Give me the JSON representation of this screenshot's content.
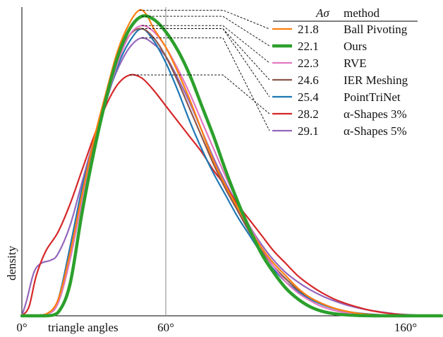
{
  "chart_data": {
    "type": "line",
    "xlabel": "triangle angles",
    "ylabel": "density",
    "xlim": [
      0,
      175
    ],
    "ylim": [
      0,
      1.0
    ],
    "x_ticks": [
      {
        "value": 0,
        "label": "0°"
      },
      {
        "value": 60,
        "label": "60°"
      },
      {
        "value": 160,
        "label": "160°"
      }
    ],
    "reference_line_x": 60,
    "grid": false,
    "legend": {
      "placement": "top-right",
      "header_metric": "Aσ",
      "header_method": "method"
    },
    "series": [
      {
        "name": "Ball Pivoting",
        "metric": "21.8",
        "color": "#ff7f0e",
        "width": 2.2,
        "points": [
          [
            0,
            0
          ],
          [
            5,
            0
          ],
          [
            10,
            0.005
          ],
          [
            15,
            0.05
          ],
          [
            20,
            0.2
          ],
          [
            25,
            0.39
          ],
          [
            30,
            0.57
          ],
          [
            35,
            0.72
          ],
          [
            40,
            0.86
          ],
          [
            45,
            0.95
          ],
          [
            49,
            0.99
          ],
          [
            52,
            0.975
          ],
          [
            55,
            0.93
          ],
          [
            60,
            0.87
          ],
          [
            65,
            0.79
          ],
          [
            70,
            0.7
          ],
          [
            75,
            0.6
          ],
          [
            80,
            0.5
          ],
          [
            85,
            0.42
          ],
          [
            90,
            0.35
          ],
          [
            95,
            0.28
          ],
          [
            100,
            0.22
          ],
          [
            105,
            0.17
          ],
          [
            110,
            0.13
          ],
          [
            115,
            0.09
          ],
          [
            120,
            0.06
          ],
          [
            125,
            0.04
          ],
          [
            130,
            0.025
          ],
          [
            135,
            0.015
          ],
          [
            140,
            0.008
          ],
          [
            145,
            0.004
          ],
          [
            150,
            0.002
          ],
          [
            160,
            0
          ],
          [
            175,
            0
          ]
        ]
      },
      {
        "name": "Ours",
        "metric": "22.1",
        "color": "#2ca02c",
        "width": 4.5,
        "points": [
          [
            0,
            0
          ],
          [
            10,
            0
          ],
          [
            15,
            0.01
          ],
          [
            20,
            0.1
          ],
          [
            25,
            0.33
          ],
          [
            30,
            0.53
          ],
          [
            35,
            0.7
          ],
          [
            40,
            0.84
          ],
          [
            45,
            0.93
          ],
          [
            50,
            0.97
          ],
          [
            55,
            0.96
          ],
          [
            60,
            0.92
          ],
          [
            65,
            0.86
          ],
          [
            70,
            0.78
          ],
          [
            75,
            0.68
          ],
          [
            80,
            0.58
          ],
          [
            85,
            0.47
          ],
          [
            90,
            0.37
          ],
          [
            95,
            0.28
          ],
          [
            100,
            0.2
          ],
          [
            105,
            0.14
          ],
          [
            110,
            0.09
          ],
          [
            115,
            0.055
          ],
          [
            120,
            0.03
          ],
          [
            125,
            0.015
          ],
          [
            130,
            0.007
          ],
          [
            135,
            0.003
          ],
          [
            140,
            0.001
          ],
          [
            150,
            0
          ],
          [
            175,
            0
          ]
        ]
      },
      {
        "name": "RVE",
        "metric": "22.3",
        "color": "#e377c2",
        "width": 2.2,
        "points": [
          [
            0,
            0
          ],
          [
            10,
            0.005
          ],
          [
            15,
            0.04
          ],
          [
            20,
            0.18
          ],
          [
            25,
            0.37
          ],
          [
            30,
            0.54
          ],
          [
            35,
            0.69
          ],
          [
            40,
            0.82
          ],
          [
            45,
            0.91
          ],
          [
            50,
            0.94
          ],
          [
            55,
            0.92
          ],
          [
            60,
            0.87
          ],
          [
            65,
            0.8
          ],
          [
            70,
            0.72
          ],
          [
            75,
            0.63
          ],
          [
            80,
            0.54
          ],
          [
            85,
            0.45
          ],
          [
            90,
            0.37
          ],
          [
            95,
            0.29
          ],
          [
            100,
            0.22
          ],
          [
            105,
            0.16
          ],
          [
            110,
            0.11
          ],
          [
            115,
            0.075
          ],
          [
            120,
            0.05
          ],
          [
            125,
            0.03
          ],
          [
            130,
            0.018
          ],
          [
            135,
            0.01
          ],
          [
            140,
            0.005
          ],
          [
            150,
            0.001
          ],
          [
            160,
            0
          ],
          [
            175,
            0
          ]
        ]
      },
      {
        "name": "IER Meshing",
        "metric": "24.6",
        "color": "#8c564b",
        "width": 2.2,
        "points": [
          [
            0,
            0
          ],
          [
            10,
            0.005
          ],
          [
            15,
            0.04
          ],
          [
            20,
            0.18
          ],
          [
            25,
            0.37
          ],
          [
            30,
            0.55
          ],
          [
            35,
            0.7
          ],
          [
            40,
            0.83
          ],
          [
            45,
            0.91
          ],
          [
            50,
            0.93
          ],
          [
            55,
            0.9
          ],
          [
            60,
            0.84
          ],
          [
            65,
            0.76
          ],
          [
            70,
            0.67
          ],
          [
            75,
            0.58
          ],
          [
            80,
            0.49
          ],
          [
            85,
            0.41
          ],
          [
            90,
            0.34
          ],
          [
            95,
            0.27
          ],
          [
            100,
            0.21
          ],
          [
            105,
            0.16
          ],
          [
            110,
            0.12
          ],
          [
            115,
            0.085
          ],
          [
            120,
            0.06
          ],
          [
            125,
            0.04
          ],
          [
            130,
            0.025
          ],
          [
            135,
            0.015
          ],
          [
            140,
            0.008
          ],
          [
            150,
            0.002
          ],
          [
            160,
            0
          ],
          [
            175,
            0
          ]
        ]
      },
      {
        "name": "PointTriNet",
        "metric": "25.4",
        "color": "#1f77b4",
        "width": 2.2,
        "points": [
          [
            0,
            0
          ],
          [
            10,
            0.005
          ],
          [
            15,
            0.05
          ],
          [
            20,
            0.22
          ],
          [
            25,
            0.41
          ],
          [
            30,
            0.56
          ],
          [
            35,
            0.69
          ],
          [
            40,
            0.81
          ],
          [
            45,
            0.89
          ],
          [
            50,
            0.93
          ],
          [
            55,
            0.89
          ],
          [
            60,
            0.82
          ],
          [
            65,
            0.73
          ],
          [
            70,
            0.63
          ],
          [
            75,
            0.54
          ],
          [
            80,
            0.46
          ],
          [
            85,
            0.39
          ],
          [
            90,
            0.32
          ],
          [
            95,
            0.26
          ],
          [
            100,
            0.2
          ],
          [
            105,
            0.15
          ],
          [
            110,
            0.11
          ],
          [
            115,
            0.08
          ],
          [
            120,
            0.055
          ],
          [
            125,
            0.037
          ],
          [
            130,
            0.024
          ],
          [
            135,
            0.015
          ],
          [
            140,
            0.009
          ],
          [
            150,
            0.003
          ],
          [
            160,
            0.001
          ],
          [
            175,
            0
          ]
        ]
      },
      {
        "name": "α-Shapes 3%",
        "metric": "28.2",
        "color": "#d62728",
        "width": 2.2,
        "points": [
          [
            0,
            0
          ],
          [
            3,
            0.03
          ],
          [
            6,
            0.13
          ],
          [
            10,
            0.21
          ],
          [
            15,
            0.27
          ],
          [
            20,
            0.36
          ],
          [
            25,
            0.47
          ],
          [
            30,
            0.58
          ],
          [
            35,
            0.68
          ],
          [
            40,
            0.75
          ],
          [
            45,
            0.78
          ],
          [
            50,
            0.77
          ],
          [
            55,
            0.73
          ],
          [
            60,
            0.68
          ],
          [
            65,
            0.63
          ],
          [
            70,
            0.58
          ],
          [
            75,
            0.53
          ],
          [
            80,
            0.47
          ],
          [
            85,
            0.42
          ],
          [
            90,
            0.36
          ],
          [
            95,
            0.31
          ],
          [
            100,
            0.26
          ],
          [
            105,
            0.21
          ],
          [
            110,
            0.17
          ],
          [
            115,
            0.13
          ],
          [
            120,
            0.1
          ],
          [
            125,
            0.075
          ],
          [
            130,
            0.055
          ],
          [
            135,
            0.04
          ],
          [
            140,
            0.028
          ],
          [
            145,
            0.018
          ],
          [
            150,
            0.011
          ],
          [
            155,
            0.006
          ],
          [
            160,
            0.003
          ],
          [
            168,
            0.001
          ],
          [
            175,
            0
          ]
        ]
      },
      {
        "name": "α-Shapes 5%",
        "metric": "29.1",
        "color": "#9467bd",
        "width": 2.2,
        "points": [
          [
            0,
            0
          ],
          [
            2,
            0.05
          ],
          [
            5,
            0.14
          ],
          [
            8,
            0.17
          ],
          [
            12,
            0.18
          ],
          [
            15,
            0.2
          ],
          [
            20,
            0.29
          ],
          [
            25,
            0.43
          ],
          [
            30,
            0.57
          ],
          [
            35,
            0.7
          ],
          [
            40,
            0.8
          ],
          [
            45,
            0.87
          ],
          [
            50,
            0.9
          ],
          [
            55,
            0.88
          ],
          [
            60,
            0.84
          ],
          [
            65,
            0.77
          ],
          [
            70,
            0.69
          ],
          [
            75,
            0.6
          ],
          [
            80,
            0.51
          ],
          [
            85,
            0.43
          ],
          [
            90,
            0.36
          ],
          [
            95,
            0.29
          ],
          [
            100,
            0.23
          ],
          [
            105,
            0.18
          ],
          [
            110,
            0.14
          ],
          [
            115,
            0.11
          ],
          [
            120,
            0.085
          ],
          [
            125,
            0.065
          ],
          [
            130,
            0.049
          ],
          [
            135,
            0.036
          ],
          [
            140,
            0.026
          ],
          [
            145,
            0.018
          ],
          [
            150,
            0.012
          ],
          [
            155,
            0.007
          ],
          [
            160,
            0.004
          ],
          [
            168,
            0.001
          ],
          [
            175,
            0
          ]
        ]
      }
    ]
  }
}
